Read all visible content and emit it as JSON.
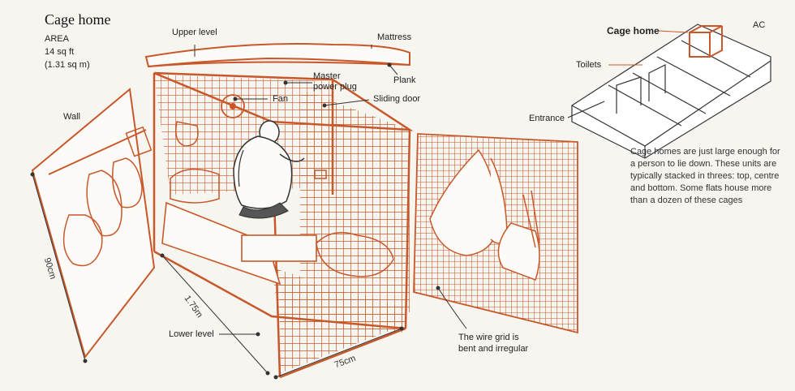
{
  "title": "Cage home",
  "area": {
    "label": "AREA",
    "sqft": "14 sq ft",
    "sqm": "(1.31 sq m)"
  },
  "labels": {
    "upper_level": "Upper level",
    "mattress": "Mattress",
    "master_power_plug": [
      "Master",
      "power plug"
    ],
    "plank": "Plank",
    "fan": "Fan",
    "sliding_door": "Sliding door",
    "wall": "Wall",
    "lower_level": "Lower level",
    "wire_grid": [
      "The wire grid is",
      "bent and irregular"
    ]
  },
  "dimensions": {
    "height": "90cm",
    "length": "1.75m",
    "width": "75cm"
  },
  "floorplan": {
    "cage_home": "Cage home",
    "ac": "AC",
    "toilets": "Toilets",
    "entrance": "Entrance"
  },
  "description": "Cage homes are just large enough for a person to lie down. These units are typically stacked in threes: top, centre and bottom. Some flats house more than a dozen of these cages",
  "colors": {
    "accent": "#c8582a",
    "ink": "#333333",
    "background": "#f7f5f0"
  }
}
